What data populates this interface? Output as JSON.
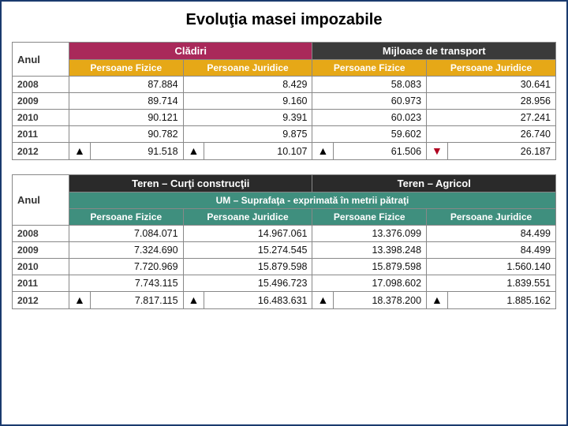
{
  "title": "Evoluţia masei impozabile",
  "labels": {
    "anul": "Anul",
    "pf": "Persoane Fizice",
    "pj": "Persoane Juridice"
  },
  "table1": {
    "group_colors": {
      "cladiri": "#a9295a",
      "mijloace": "#3a3a3a"
    },
    "subhead_color": "#e6a817",
    "groups": {
      "cladiri": "Clădiri",
      "mijloace": "Mijloace de transport"
    },
    "years": [
      "2008",
      "2009",
      "2010",
      "2011",
      "2012"
    ],
    "rows": [
      {
        "c_pf": "87.884",
        "c_pj": "8.429",
        "m_pf": "58.083",
        "m_pj": "30.641"
      },
      {
        "c_pf": "89.714",
        "c_pj": "9.160",
        "m_pf": "60.973",
        "m_pj": "28.956"
      },
      {
        "c_pf": "90.121",
        "c_pj": "9.391",
        "m_pf": "60.023",
        "m_pj": "27.241"
      },
      {
        "c_pf": "90.782",
        "c_pj": "9.875",
        "m_pf": "59.602",
        "m_pj": "26.740"
      },
      {
        "c_pf": "91.518",
        "c_pj": "10.107",
        "m_pf": "61.506",
        "m_pj": "26.187"
      }
    ],
    "arrows": {
      "c_pf": {
        "dir": "up",
        "color": "#000"
      },
      "c_pj": {
        "dir": "up",
        "color": "#000"
      },
      "m_pf": {
        "dir": "up",
        "color": "#000"
      },
      "m_pj": {
        "dir": "down",
        "color": "#b00020"
      }
    }
  },
  "table2": {
    "group_color": "#2a2a2a",
    "um_color": "#3f8f7e",
    "subhead_color": "#3f8f7e",
    "groups": {
      "curti": "Teren – Curţi construcţii",
      "agricol": "Teren – Agricol"
    },
    "um": "UM – Suprafaţa - exprimată în metrii pătraţi",
    "years": [
      "2008",
      "2009",
      "2010",
      "2011",
      "2012"
    ],
    "rows": [
      {
        "c_pf": "7.084.071",
        "c_pj": "14.967.061",
        "a_pf": "13.376.099",
        "a_pj": "84.499"
      },
      {
        "c_pf": "7.324.690",
        "c_pj": "15.274.545",
        "a_pf": "13.398.248",
        "a_pj": "84.499"
      },
      {
        "c_pf": "7.720.969",
        "c_pj": "15.879.598",
        "a_pf": "15.879.598",
        "a_pj": "1.560.140"
      },
      {
        "c_pf": "7.743.115",
        "c_pj": "15.496.723",
        "a_pf": "17.098.602",
        "a_pj": "1.839.551"
      },
      {
        "c_pf": "7.817.115",
        "c_pj": "16.483.631",
        "a_pf": "18.378.200",
        "a_pj": "1.885.162"
      }
    ],
    "arrows": {
      "c_pf": {
        "dir": "up",
        "color": "#000"
      },
      "c_pj": {
        "dir": "up",
        "color": "#000"
      },
      "a_pf": {
        "dir": "up",
        "color": "#000"
      },
      "a_pj": {
        "dir": "up",
        "color": "#000"
      }
    }
  }
}
